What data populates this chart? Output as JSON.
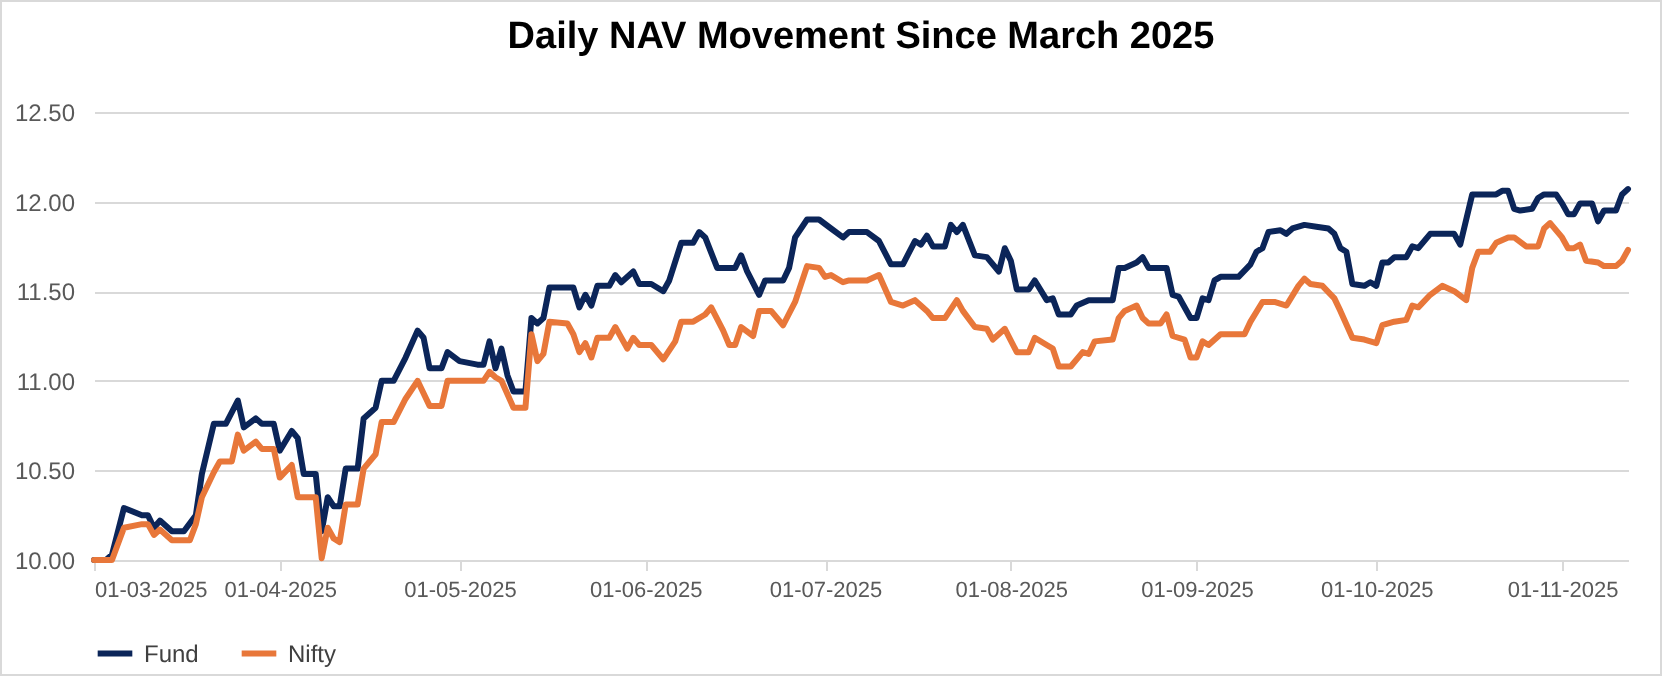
{
  "chart_data": {
    "type": "line",
    "title": "Daily NAV Movement Since March 2025",
    "xlim": [
      "2025-03-01",
      "2025-11-12"
    ],
    "xticks": [
      {
        "value": "2025-03-01",
        "label": "01-03-2025"
      },
      {
        "value": "2025-04-01",
        "label": "01-04-2025"
      },
      {
        "value": "2025-05-01",
        "label": "01-05-2025"
      },
      {
        "value": "2025-06-01",
        "label": "01-06-2025"
      },
      {
        "value": "2025-07-01",
        "label": "01-07-2025"
      },
      {
        "value": "2025-08-01",
        "label": "01-08-2025"
      },
      {
        "value": "2025-09-01",
        "label": "01-09-2025"
      },
      {
        "value": "2025-10-01",
        "label": "01-10-2025"
      },
      {
        "value": "2025-11-01",
        "label": "01-11-2025"
      }
    ],
    "ylim": [
      10,
      12.5
    ],
    "yticks": [
      {
        "value": 10,
        "label": "10.00"
      },
      {
        "value": 10.5,
        "label": "10.50"
      },
      {
        "value": 11,
        "label": "11.00"
      },
      {
        "value": 11.5,
        "label": "11.50"
      },
      {
        "value": 12,
        "label": "12.00"
      },
      {
        "value": 12.5,
        "label": "12.50"
      }
    ],
    "grid": "y",
    "legend": "bottom",
    "series": [
      {
        "name": "Fund",
        "color": "#0b2559",
        "x": [
          "2025-03-01",
          "2025-03-03",
          "2025-03-04",
          "2025-03-06",
          "2025-03-09",
          "2025-03-10",
          "2025-03-11",
          "2025-03-12",
          "2025-03-14",
          "2025-03-16",
          "2025-03-18",
          "2025-03-19",
          "2025-03-21",
          "2025-03-23",
          "2025-03-25",
          "2025-03-26",
          "2025-03-28",
          "2025-03-29",
          "2025-03-31",
          "2025-04-01",
          "2025-04-03",
          "2025-04-04",
          "2025-04-05",
          "2025-04-07",
          "2025-04-08",
          "2025-04-09",
          "2025-04-10",
          "2025-04-11",
          "2025-04-12",
          "2025-04-14",
          "2025-04-15",
          "2025-04-17",
          "2025-04-18",
          "2025-04-20",
          "2025-04-22",
          "2025-04-24",
          "2025-04-25",
          "2025-04-26",
          "2025-04-28",
          "2025-04-29",
          "2025-05-01",
          "2025-05-04",
          "2025-05-05",
          "2025-05-06",
          "2025-05-07",
          "2025-05-08",
          "2025-05-09",
          "2025-05-10",
          "2025-05-12",
          "2025-05-13",
          "2025-05-14",
          "2025-05-15",
          "2025-05-16",
          "2025-05-20",
          "2025-05-21",
          "2025-05-22",
          "2025-05-23",
          "2025-05-24",
          "2025-05-26",
          "2025-05-27",
          "2025-05-28",
          "2025-05-30",
          "2025-05-31",
          "2025-06-02",
          "2025-06-04",
          "2025-06-05",
          "2025-06-07",
          "2025-06-09",
          "2025-06-10",
          "2025-06-11",
          "2025-06-13",
          "2025-06-16",
          "2025-06-17",
          "2025-06-18",
          "2025-06-20",
          "2025-06-21",
          "2025-06-24",
          "2025-06-25",
          "2025-06-26",
          "2025-06-28",
          "2025-06-30",
          "2025-07-02",
          "2025-07-04",
          "2025-07-05",
          "2025-07-08",
          "2025-07-10",
          "2025-07-12",
          "2025-07-14",
          "2025-07-16",
          "2025-07-17",
          "2025-07-18",
          "2025-07-19",
          "2025-07-21",
          "2025-07-22",
          "2025-07-23",
          "2025-07-24",
          "2025-07-26",
          "2025-07-28",
          "2025-07-30",
          "2025-07-31",
          "2025-08-01",
          "2025-08-02",
          "2025-08-04",
          "2025-08-05",
          "2025-08-07",
          "2025-08-08",
          "2025-08-09",
          "2025-08-11",
          "2025-08-12",
          "2025-08-14",
          "2025-08-18",
          "2025-08-19",
          "2025-08-20",
          "2025-08-22",
          "2025-08-23",
          "2025-08-24",
          "2025-08-27",
          "2025-08-28",
          "2025-08-29",
          "2025-08-31",
          "2025-09-01",
          "2025-09-02",
          "2025-09-03",
          "2025-09-04",
          "2025-09-05",
          "2025-09-08",
          "2025-09-10",
          "2025-09-11",
          "2025-09-12",
          "2025-09-13",
          "2025-09-15",
          "2025-09-16",
          "2025-09-17",
          "2025-09-19",
          "2025-09-21",
          "2025-09-23",
          "2025-09-24",
          "2025-09-25",
          "2025-09-26",
          "2025-09-27",
          "2025-09-29",
          "2025-09-30",
          "2025-10-01",
          "2025-10-02",
          "2025-10-03",
          "2025-10-04",
          "2025-10-06",
          "2025-10-07",
          "2025-10-08",
          "2025-10-10",
          "2025-10-14",
          "2025-10-15",
          "2025-10-17",
          "2025-10-21",
          "2025-10-22",
          "2025-10-23",
          "2025-10-24",
          "2025-10-25",
          "2025-10-27",
          "2025-10-28",
          "2025-10-29",
          "2025-10-31",
          "2025-11-01",
          "2025-11-02",
          "2025-11-03",
          "2025-11-04",
          "2025-11-06",
          "2025-11-07",
          "2025-11-08",
          "2025-11-10",
          "2025-11-11",
          "2025-11-12"
        ],
        "values": [
          10.0,
          10.0,
          10.03,
          10.29,
          10.25,
          10.25,
          10.18,
          10.22,
          10.16,
          10.16,
          10.25,
          10.48,
          10.76,
          10.76,
          10.89,
          10.74,
          10.79,
          10.76,
          10.76,
          10.61,
          10.72,
          10.68,
          10.48,
          10.48,
          10.16,
          10.35,
          10.3,
          10.3,
          10.51,
          10.51,
          10.79,
          10.85,
          11.0,
          11.0,
          11.13,
          11.28,
          11.24,
          11.07,
          11.07,
          11.16,
          11.11,
          11.09,
          11.09,
          11.22,
          11.07,
          11.18,
          11.03,
          10.94,
          10.94,
          11.35,
          11.32,
          11.35,
          11.52,
          11.52,
          11.41,
          11.48,
          11.42,
          11.53,
          11.53,
          11.59,
          11.55,
          11.61,
          11.54,
          11.54,
          11.5,
          11.56,
          11.77,
          11.77,
          11.83,
          11.8,
          11.63,
          11.63,
          11.7,
          11.61,
          11.48,
          11.56,
          11.56,
          11.63,
          11.8,
          11.9,
          11.9,
          11.85,
          11.8,
          11.83,
          11.83,
          11.78,
          11.65,
          11.65,
          11.78,
          11.76,
          11.81,
          11.75,
          11.75,
          11.87,
          11.83,
          11.87,
          11.7,
          11.69,
          11.61,
          11.74,
          11.67,
          11.51,
          11.51,
          11.56,
          11.45,
          11.46,
          11.37,
          11.37,
          11.42,
          11.45,
          11.45,
          11.63,
          11.63,
          11.66,
          11.69,
          11.63,
          11.63,
          11.48,
          11.47,
          11.35,
          11.35,
          11.46,
          11.45,
          11.56,
          11.58,
          11.58,
          11.65,
          11.72,
          11.74,
          11.83,
          11.84,
          11.82,
          11.85,
          11.87,
          11.86,
          11.85,
          11.82,
          11.74,
          11.72,
          11.54,
          11.53,
          11.55,
          11.53,
          11.66,
          11.66,
          11.69,
          11.69,
          11.75,
          11.74,
          11.82,
          11.82,
          11.76,
          12.04,
          12.04,
          12.06,
          12.06,
          11.96,
          11.95,
          11.96,
          12.02,
          12.04,
          12.04,
          11.99,
          11.93,
          11.93,
          11.99,
          11.99,
          11.89,
          11.95,
          11.95,
          12.04,
          12.07
        ]
      },
      {
        "name": "Nifty",
        "color": "#e8773a",
        "x": [
          "2025-03-01",
          "2025-03-04",
          "2025-03-06",
          "2025-03-09",
          "2025-03-10",
          "2025-03-11",
          "2025-03-12",
          "2025-03-14",
          "2025-03-17",
          "2025-03-18",
          "2025-03-19",
          "2025-03-21",
          "2025-03-22",
          "2025-03-24",
          "2025-03-25",
          "2025-03-26",
          "2025-03-28",
          "2025-03-29",
          "2025-03-31",
          "2025-04-01",
          "2025-04-03",
          "2025-04-04",
          "2025-04-07",
          "2025-04-08",
          "2025-04-09",
          "2025-04-10",
          "2025-04-11",
          "2025-04-12",
          "2025-04-14",
          "2025-04-15",
          "2025-04-17",
          "2025-04-18",
          "2025-04-20",
          "2025-04-22",
          "2025-04-24",
          "2025-04-26",
          "2025-04-28",
          "2025-04-29",
          "2025-05-02",
          "2025-05-05",
          "2025-05-06",
          "2025-05-07",
          "2025-05-08",
          "2025-05-10",
          "2025-05-12",
          "2025-05-13",
          "2025-05-14",
          "2025-05-15",
          "2025-05-16",
          "2025-05-19",
          "2025-05-20",
          "2025-05-21",
          "2025-05-22",
          "2025-05-23",
          "2025-05-24",
          "2025-05-26",
          "2025-05-27",
          "2025-05-28",
          "2025-05-29",
          "2025-05-30",
          "2025-05-31",
          "2025-06-02",
          "2025-06-04",
          "2025-06-06",
          "2025-06-07",
          "2025-06-09",
          "2025-06-11",
          "2025-06-12",
          "2025-06-14",
          "2025-06-15",
          "2025-06-16",
          "2025-06-17",
          "2025-06-19",
          "2025-06-20",
          "2025-06-22",
          "2025-06-24",
          "2025-06-26",
          "2025-06-28",
          "2025-06-30",
          "2025-07-01",
          "2025-07-02",
          "2025-07-04",
          "2025-07-05",
          "2025-07-08",
          "2025-07-10",
          "2025-07-12",
          "2025-07-14",
          "2025-07-16",
          "2025-07-18",
          "2025-07-19",
          "2025-07-21",
          "2025-07-23",
          "2025-07-24",
          "2025-07-26",
          "2025-07-28",
          "2025-07-29",
          "2025-07-31",
          "2025-08-02",
          "2025-08-04",
          "2025-08-05",
          "2025-08-07",
          "2025-08-08",
          "2025-08-09",
          "2025-08-11",
          "2025-08-13",
          "2025-08-14",
          "2025-08-15",
          "2025-08-18",
          "2025-08-19",
          "2025-08-20",
          "2025-08-22",
          "2025-08-23",
          "2025-08-24",
          "2025-08-26",
          "2025-08-27",
          "2025-08-28",
          "2025-08-30",
          "2025-08-31",
          "2025-09-01",
          "2025-09-02",
          "2025-09-03",
          "2025-09-05",
          "2025-09-09",
          "2025-09-10",
          "2025-09-12",
          "2025-09-14",
          "2025-09-16",
          "2025-09-18",
          "2025-09-19",
          "2025-09-20",
          "2025-09-22",
          "2025-09-24",
          "2025-09-25",
          "2025-09-27",
          "2025-09-29",
          "2025-10-01",
          "2025-10-02",
          "2025-10-04",
          "2025-10-06",
          "2025-10-07",
          "2025-10-08",
          "2025-10-10",
          "2025-10-12",
          "2025-10-14",
          "2025-10-16",
          "2025-10-17",
          "2025-10-18",
          "2025-10-20",
          "2025-10-21",
          "2025-10-23",
          "2025-10-24",
          "2025-10-26",
          "2025-10-28",
          "2025-10-29",
          "2025-10-30",
          "2025-11-01",
          "2025-11-02",
          "2025-11-03",
          "2025-11-04",
          "2025-11-05",
          "2025-11-07",
          "2025-11-08",
          "2025-11-10",
          "2025-11-11",
          "2025-11-12"
        ],
        "values": [
          10.0,
          10.0,
          10.18,
          10.2,
          10.2,
          10.14,
          10.17,
          10.11,
          10.11,
          10.2,
          10.35,
          10.49,
          10.55,
          10.55,
          10.7,
          10.61,
          10.66,
          10.62,
          10.62,
          10.46,
          10.53,
          10.35,
          10.35,
          10.01,
          10.18,
          10.12,
          10.1,
          10.31,
          10.31,
          10.51,
          10.59,
          10.77,
          10.77,
          10.9,
          11.0,
          10.86,
          10.86,
          11.0,
          11.0,
          11.0,
          11.05,
          11.02,
          11.0,
          10.85,
          10.85,
          11.26,
          11.11,
          11.15,
          11.33,
          11.32,
          11.26,
          11.16,
          11.21,
          11.13,
          11.24,
          11.24,
          11.3,
          11.24,
          11.18,
          11.24,
          11.2,
          11.2,
          11.12,
          11.22,
          11.33,
          11.33,
          11.37,
          11.41,
          11.28,
          11.2,
          11.2,
          11.3,
          11.25,
          11.39,
          11.39,
          11.31,
          11.44,
          11.64,
          11.63,
          11.58,
          11.59,
          11.55,
          11.56,
          11.56,
          11.59,
          11.44,
          11.42,
          11.45,
          11.39,
          11.35,
          11.35,
          11.45,
          11.39,
          11.3,
          11.29,
          11.23,
          11.29,
          11.16,
          11.16,
          11.24,
          11.2,
          11.18,
          11.08,
          11.08,
          11.16,
          11.15,
          11.22,
          11.23,
          11.35,
          11.39,
          11.42,
          11.35,
          11.32,
          11.32,
          11.37,
          11.25,
          11.23,
          11.13,
          11.13,
          11.22,
          11.2,
          11.26,
          11.26,
          11.33,
          11.44,
          11.44,
          11.42,
          11.53,
          11.57,
          11.54,
          11.53,
          11.46,
          11.39,
          11.24,
          11.23,
          11.21,
          11.31,
          11.33,
          11.34,
          11.42,
          11.41,
          11.48,
          11.53,
          11.5,
          11.45,
          11.63,
          11.72,
          11.72,
          11.77,
          11.8,
          11.8,
          11.75,
          11.75,
          11.85,
          11.88,
          11.8,
          11.74,
          11.74,
          11.76,
          11.67,
          11.66,
          11.64,
          11.64,
          11.67,
          11.73
        ]
      }
    ]
  }
}
